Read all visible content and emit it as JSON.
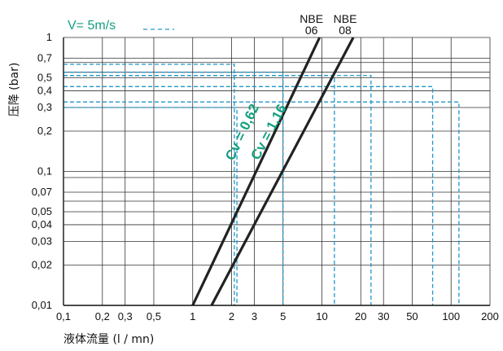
{
  "chart_data": {
    "type": "line",
    "title": "",
    "xlabel": "液体流量 (l / mn)",
    "ylabel": "压降 (bar)",
    "xscale": "log",
    "yscale": "log",
    "xlim": [
      0.1,
      200
    ],
    "ylim": [
      0.01,
      1
    ],
    "grid": true,
    "x_ticks": [
      {
        "v": 0.1,
        "label": "0,1"
      },
      {
        "v": 0.2,
        "label": "0,2"
      },
      {
        "v": 0.3,
        "label": "0,3"
      },
      {
        "v": 0.5,
        "label": "0,5"
      },
      {
        "v": 1,
        "label": "1"
      },
      {
        "v": 2,
        "label": "2"
      },
      {
        "v": 3,
        "label": "3"
      },
      {
        "v": 5,
        "label": "5"
      },
      {
        "v": 10,
        "label": "10"
      },
      {
        "v": 20,
        "label": "20"
      },
      {
        "v": 30,
        "label": "30"
      },
      {
        "v": 50,
        "label": "50"
      },
      {
        "v": 100,
        "label": "100"
      },
      {
        "v": 200,
        "label": "200"
      }
    ],
    "y_ticks": [
      {
        "v": 0.01,
        "label": "0,01"
      },
      {
        "v": 0.02,
        "label": "0,02"
      },
      {
        "v": 0.03,
        "label": "0,03"
      },
      {
        "v": 0.04,
        "label": "0,04"
      },
      {
        "v": 0.05,
        "label": "0,05"
      },
      {
        "v": 0.07,
        "label": "0,07"
      },
      {
        "v": 0.1,
        "label": "0,1"
      },
      {
        "v": 0.2,
        "label": "0,2"
      },
      {
        "v": 0.3,
        "label": "0,3"
      },
      {
        "v": 0.4,
        "label": "0,4"
      },
      {
        "v": 0.5,
        "label": "0,5"
      },
      {
        "v": 0.7,
        "label": "0,7"
      },
      {
        "v": 1,
        "label": "1"
      }
    ],
    "extra_y_gridlines": [
      0.09,
      0.06,
      0.55,
      0.65
    ],
    "series": [
      {
        "name": "NBE 06",
        "label_lines": [
          "NBE",
          "06"
        ],
        "curve_label": "Cv = 0,62",
        "color": "#222222",
        "x": [
          1.0,
          9.6
        ],
        "y": [
          0.01,
          1.0
        ]
      },
      {
        "name": "NBE 08",
        "label_lines": [
          "NBE",
          "08"
        ],
        "curve_label": "Cv = 1,16",
        "color": "#222222",
        "x": [
          1.4,
          17.5
        ],
        "y": [
          0.01,
          1.0
        ]
      }
    ],
    "reference": {
      "label": "V= 5m/s",
      "style": "dashed",
      "color": "#2196c9",
      "lines": [
        {
          "x": 2.1,
          "y": 0.63
        },
        {
          "x": 5.0,
          "y": 0.55
        },
        {
          "x": 12.5,
          "y": 0.52
        },
        {
          "x": 24.0,
          "y": 0.52
        },
        {
          "x": 72.0,
          "y": 0.43
        },
        {
          "x": 115.0,
          "y": 0.33
        },
        {
          "x": 2.2,
          "y": 0.3
        }
      ]
    }
  }
}
